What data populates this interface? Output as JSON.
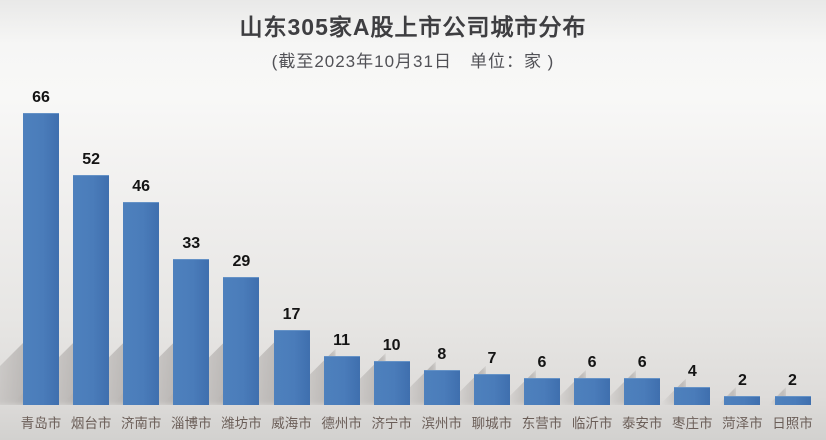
{
  "header": {
    "title": "山东305家A股上市公司城市分布",
    "subtitle": "(截至2023年10月31日　单位：家 )"
  },
  "chart_data": {
    "type": "bar",
    "title": "山东305家A股上市公司城市分布",
    "subtitle": "(截至2023年10月31日　单位：家 )",
    "as_of_label": "截至2023年10月31日",
    "unit_label": "单位：家",
    "categories": [
      "青岛市",
      "烟台市",
      "济南市",
      "淄博市",
      "潍坊市",
      "威海市",
      "德州市",
      "济宁市",
      "滨州市",
      "聊城市",
      "东营市",
      "临沂市",
      "泰安市",
      "枣庄市",
      "菏泽市",
      "日照市"
    ],
    "values": [
      66,
      52,
      46,
      33,
      29,
      17,
      11,
      10,
      8,
      7,
      6,
      6,
      6,
      4,
      2,
      2
    ],
    "total_companies": 305,
    "xlabel": "",
    "ylabel": "",
    "ylim": [
      0,
      70
    ],
    "grid": false,
    "legend_position": "none",
    "value_labels_shown": true,
    "axis_shown": false
  },
  "colors": {
    "bar_fill": "#4a7cba",
    "bar_edge": "#6592c6",
    "title_text": "#3e3e41",
    "subtitle_text": "#515156",
    "value_label_text": "#141414",
    "category_label_text": "#6b5e58",
    "background_top": "#e9e9e8",
    "background_bottom": "#d2d1cf",
    "shadow": "#8a8682"
  }
}
